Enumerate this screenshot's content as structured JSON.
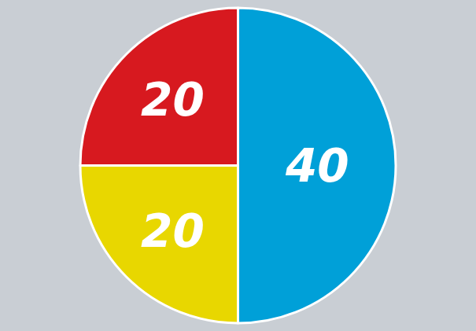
{
  "chart_data": {
    "type": "pie",
    "values": [
      40,
      20,
      20
    ],
    "colors": [
      "#00a0d8",
      "#e8d700",
      "#d7191f"
    ],
    "data_labels": true
  }
}
